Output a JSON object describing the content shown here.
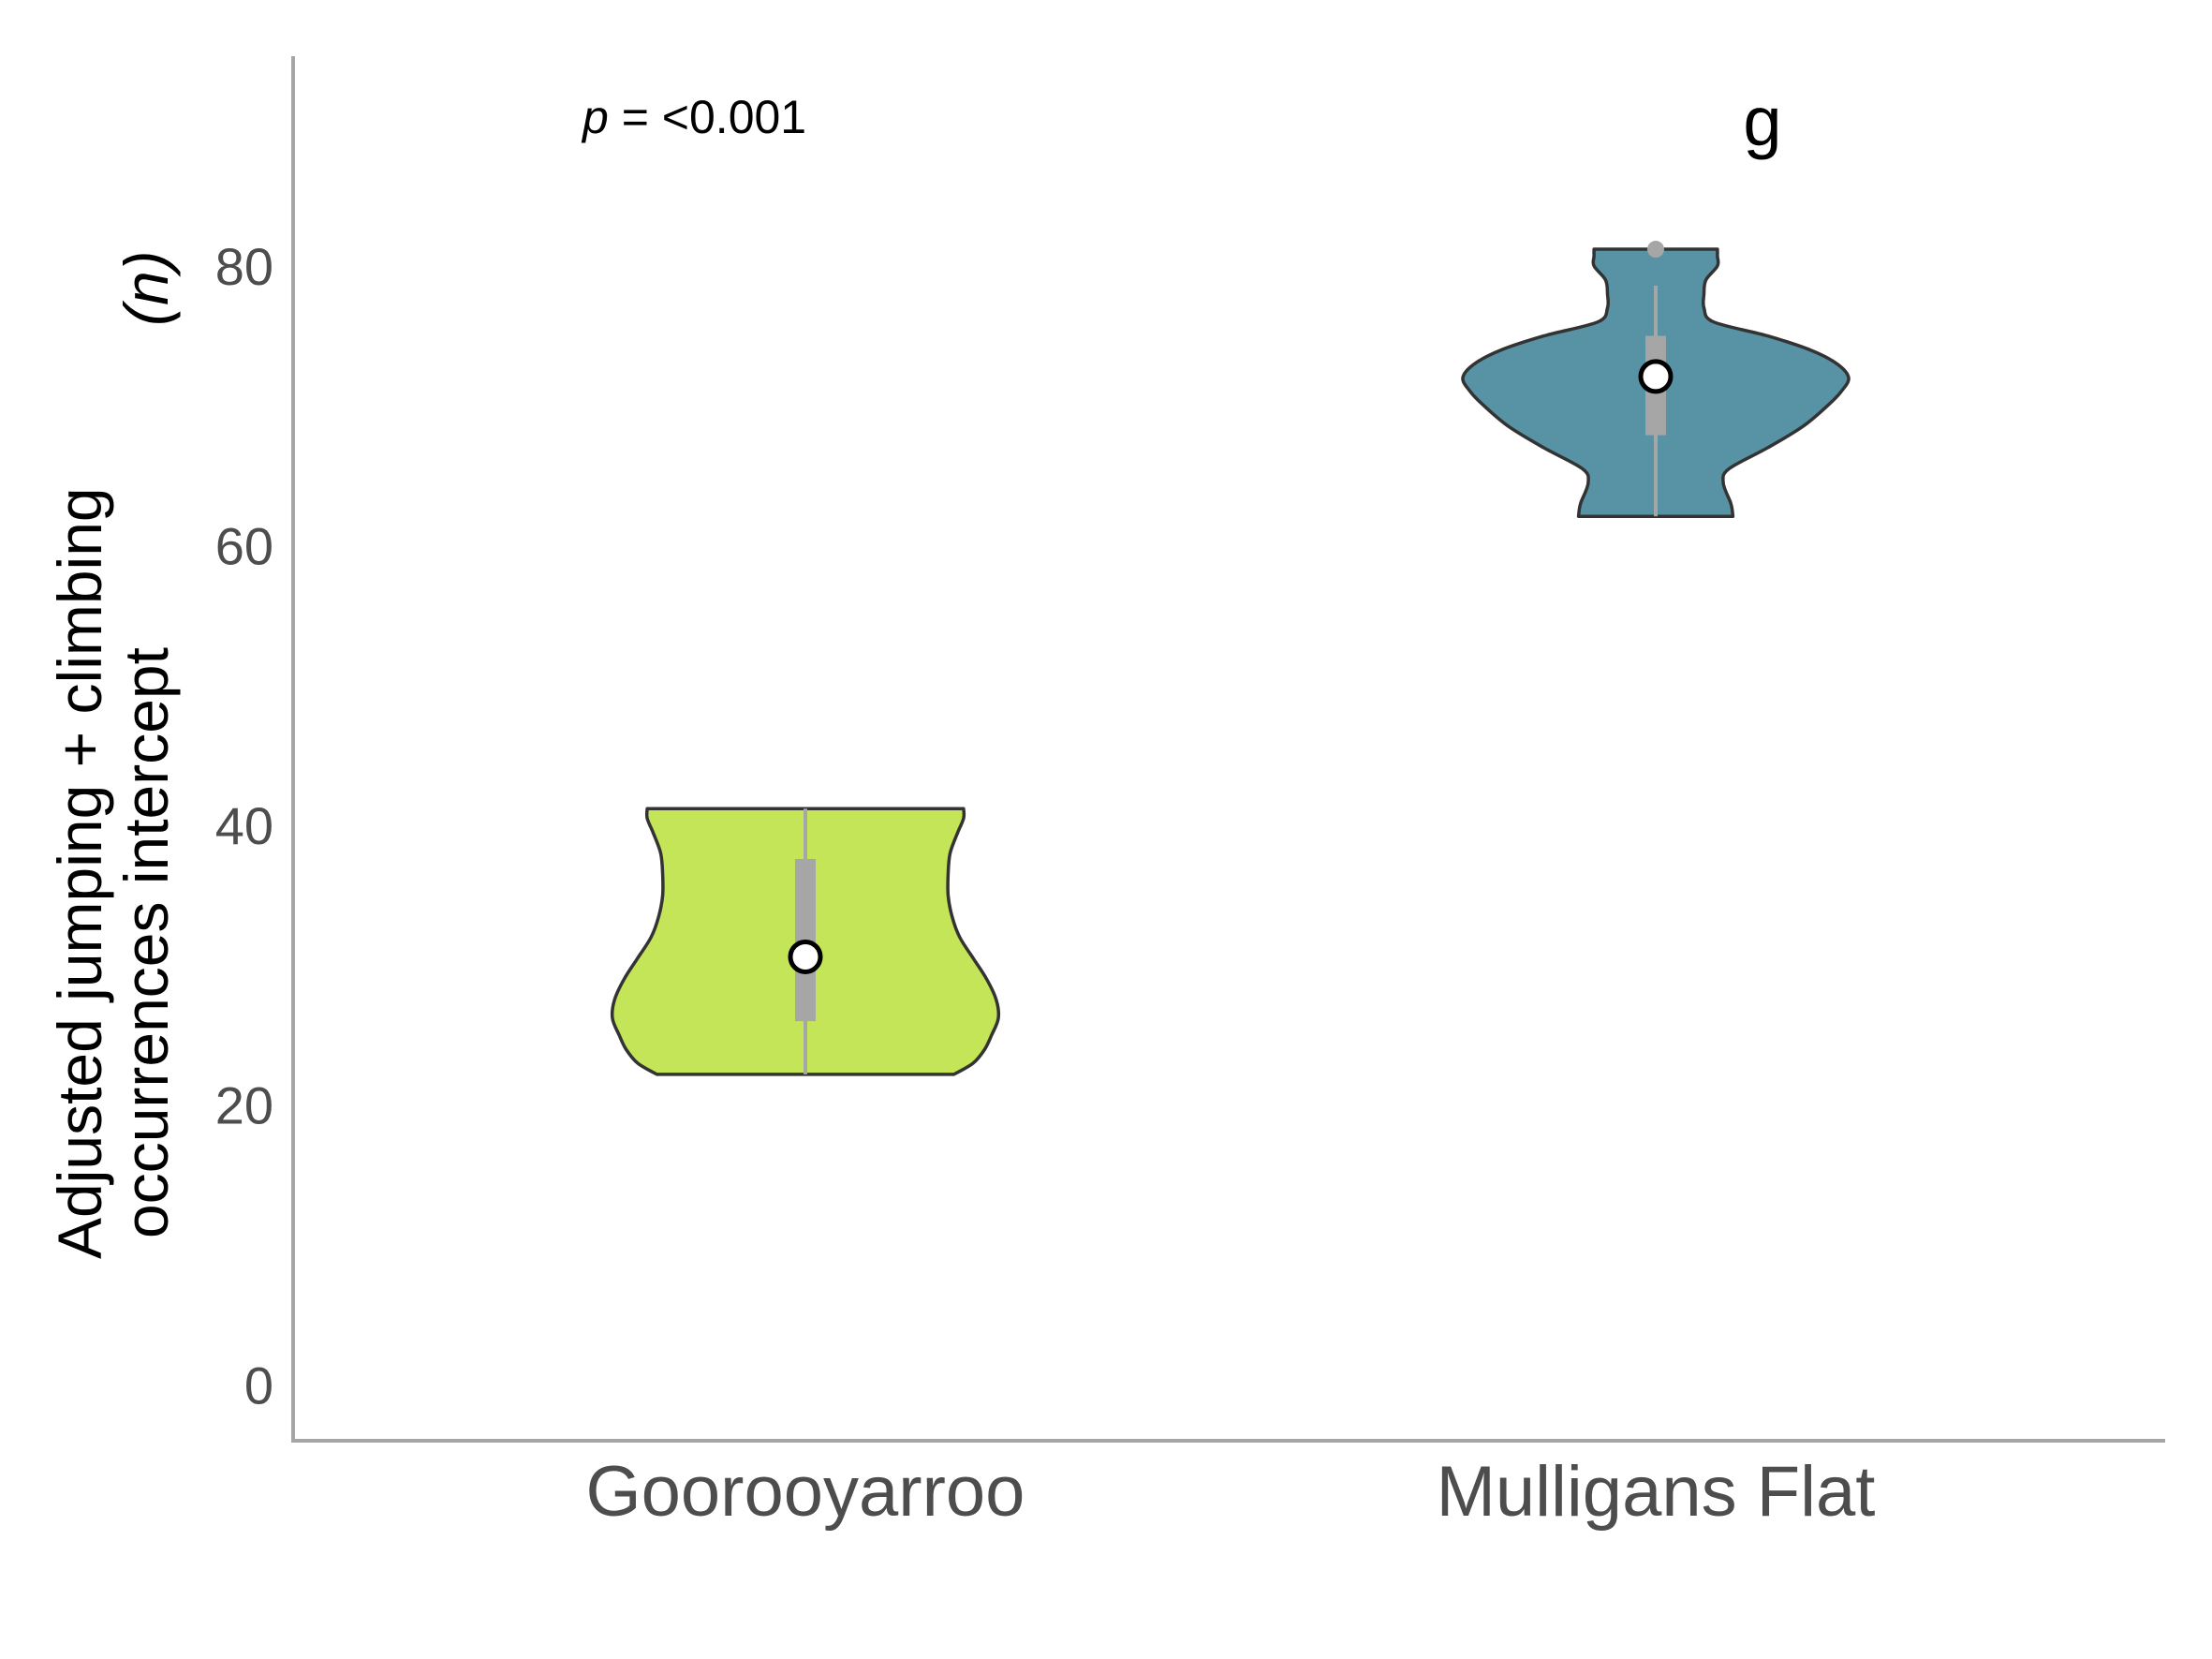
{
  "chart_data": {
    "type": "violin",
    "categories": [
      "Goorooyarroo",
      "Mulligans Flat"
    ],
    "ylabel_lines": [
      "Adjusted jumping + climbing",
      "occurrences intercept"
    ],
    "ylabel_unit": "(n)",
    "ylim": [
      -4,
      95
    ],
    "yticks": [
      "0",
      "20",
      "40",
      "60",
      "80"
    ],
    "annotation": {
      "p_symbol": "p",
      "p_text": " = <0.001"
    },
    "letter_label": "g",
    "grid": false,
    "violins": [
      {
        "category": "Goorooyarroo",
        "color": "#c5e558",
        "min": 22.2,
        "max": 41.2,
        "q1": 26.0,
        "q3": 37.6,
        "median": 30.6,
        "profile": [
          [
            22.2,
            0.77
          ],
          [
            23.0,
            0.87
          ],
          [
            24.0,
            0.93
          ],
          [
            25.0,
            0.965
          ],
          [
            26.2,
            1.0
          ],
          [
            27.5,
            0.99
          ],
          [
            29.0,
            0.94
          ],
          [
            30.5,
            0.87
          ],
          [
            32.0,
            0.8
          ],
          [
            33.5,
            0.76
          ],
          [
            35.0,
            0.74
          ],
          [
            36.5,
            0.74
          ],
          [
            38.0,
            0.75
          ],
          [
            39.5,
            0.79
          ],
          [
            40.5,
            0.82
          ],
          [
            41.2,
            0.82
          ]
        ]
      },
      {
        "category": "Mulligans Flat",
        "color": "#5893a5",
        "min": 62.1,
        "max": 81.2,
        "q1": 67.9,
        "q3": 75.0,
        "median": 72.1,
        "whisker_high": 78.6,
        "outliers": [
          81.2
        ],
        "profile": [
          [
            62.1,
            0.4
          ],
          [
            63.0,
            0.39
          ],
          [
            64.5,
            0.35
          ],
          [
            65.5,
            0.38
          ],
          [
            67.0,
            0.58
          ],
          [
            68.5,
            0.76
          ],
          [
            70.0,
            0.89
          ],
          [
            71.0,
            0.96
          ],
          [
            72.0,
            1.0
          ],
          [
            73.0,
            0.94
          ],
          [
            74.0,
            0.8
          ],
          [
            75.0,
            0.58
          ],
          [
            76.0,
            0.3
          ],
          [
            77.0,
            0.25
          ],
          [
            78.0,
            0.25
          ],
          [
            79.0,
            0.26
          ],
          [
            80.0,
            0.32
          ],
          [
            80.7,
            0.32
          ],
          [
            81.2,
            0.32
          ]
        ]
      }
    ]
  }
}
